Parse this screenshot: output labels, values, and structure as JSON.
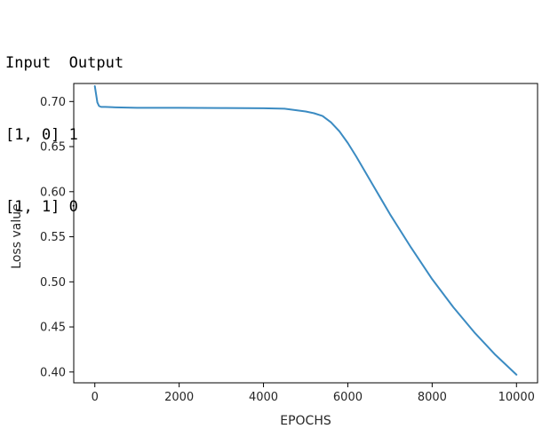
{
  "console": {
    "lines": [
      "Input  Output",
      "[1, 0] 1",
      "[1, 1] 0"
    ]
  },
  "chart_data": {
    "type": "line",
    "title": "",
    "xlabel": "EPOCHS",
    "ylabel": "Loss value",
    "xlim": [
      -500,
      10500
    ],
    "ylim": [
      0.388,
      0.72
    ],
    "xticks": [
      0,
      2000,
      4000,
      6000,
      8000,
      10000
    ],
    "xtick_labels": [
      "0",
      "2000",
      "4000",
      "6000",
      "8000",
      "10000"
    ],
    "yticks": [
      0.4,
      0.45,
      0.5,
      0.55,
      0.6,
      0.65,
      0.7
    ],
    "ytick_labels": [
      "0.40",
      "0.45",
      "0.50",
      "0.55",
      "0.60",
      "0.65",
      "0.70"
    ],
    "grid": false,
    "series": [
      {
        "color": "#3b8bc2",
        "x": [
          0,
          30,
          60,
          100,
          150,
          250,
          500,
          1000,
          2000,
          3000,
          4000,
          4500,
          5000,
          5200,
          5400,
          5600,
          5800,
          6000,
          6200,
          6400,
          6600,
          6800,
          7000,
          7500,
          8000,
          8500,
          9000,
          9500,
          10000
        ],
        "y": [
          0.717,
          0.708,
          0.699,
          0.695,
          0.694,
          0.694,
          0.6935,
          0.693,
          0.693,
          0.6928,
          0.6925,
          0.692,
          0.689,
          0.687,
          0.684,
          0.677,
          0.667,
          0.654,
          0.639,
          0.623,
          0.607,
          0.591,
          0.575,
          0.538,
          0.503,
          0.472,
          0.444,
          0.419,
          0.397
        ]
      }
    ]
  }
}
